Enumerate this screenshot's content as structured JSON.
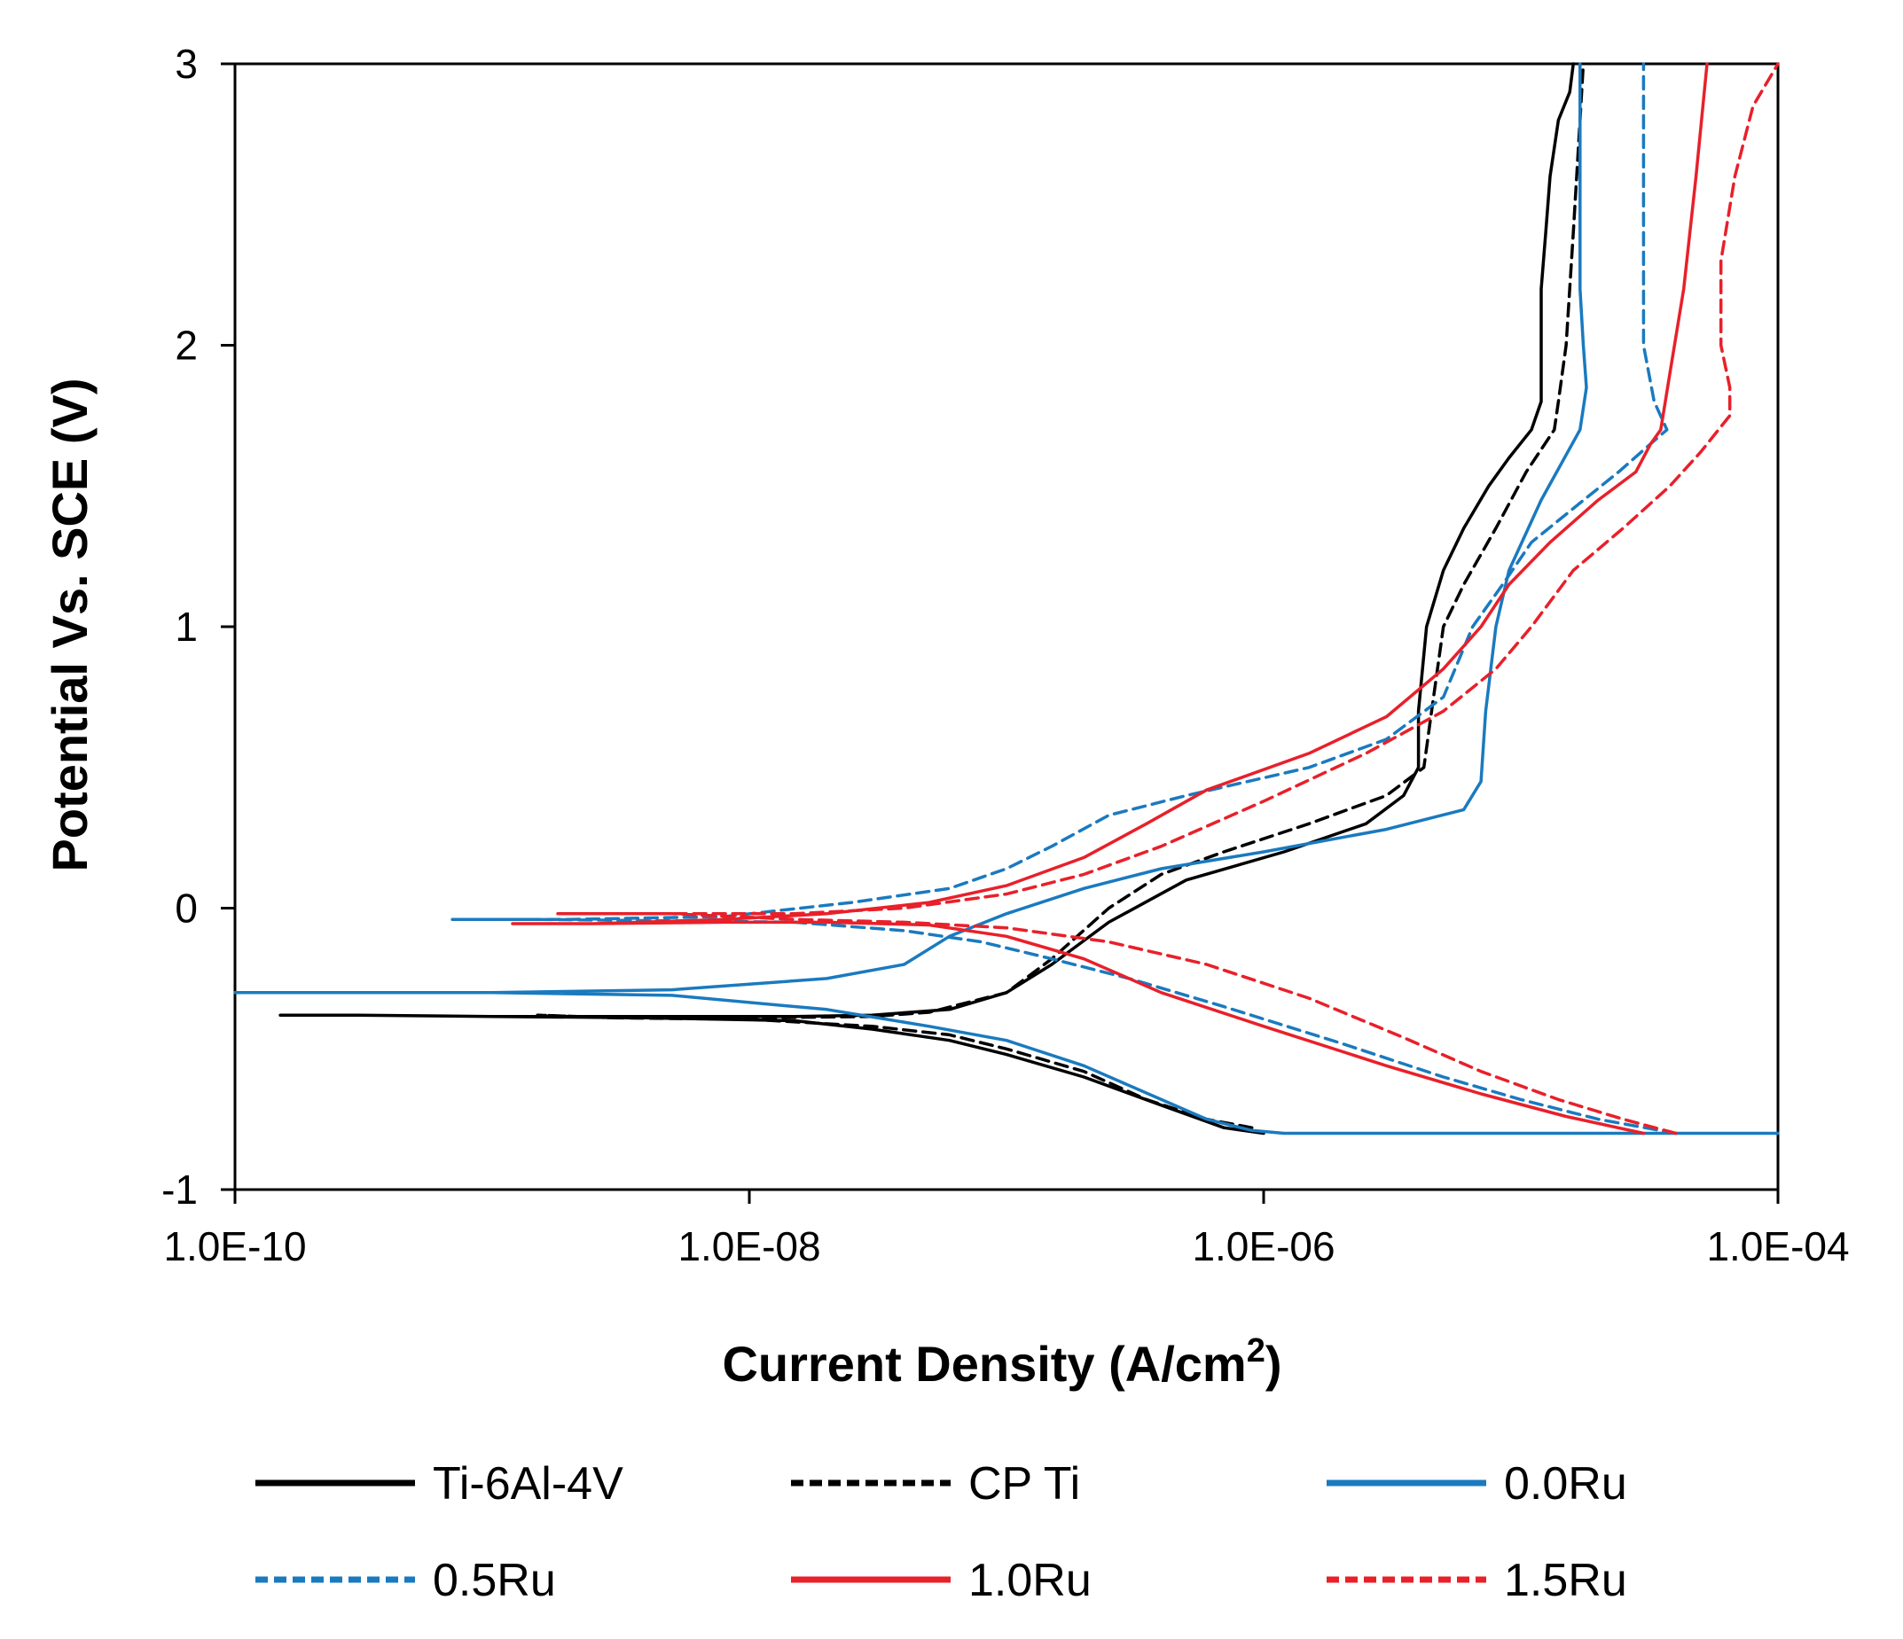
{
  "chart_data": {
    "type": "line",
    "title": "",
    "xlabel": "Current Density (A/cm",
    "xlabel_superscript": "2",
    "xlabel_close": ")",
    "ylabel": "Potential Vs. SCE (V)",
    "xscale": "log",
    "xlim": [
      1e-10,
      0.0001
    ],
    "ylim": [
      -1,
      3
    ],
    "x_ticks": [
      1e-10,
      1e-08,
      1e-06,
      0.0001
    ],
    "x_tick_labels": [
      "1.0E-10",
      "1.0E-08",
      "1.0E-06",
      "1.0E-04"
    ],
    "y_ticks": [
      -1,
      0,
      1,
      2,
      3
    ],
    "y_tick_labels": [
      "-1",
      "0",
      "1",
      "2",
      "3"
    ],
    "grid": false,
    "legend_position": "bottom",
    "series": [
      {
        "name": "Ti-6Al-4V",
        "color": "#000000",
        "dash": "solid",
        "x": [
          1e-06,
          7e-07,
          4e-07,
          2e-07,
          1e-07,
          6e-08,
          3e-08,
          1.5e-08,
          4e-09,
          1e-09,
          3e-10,
          1.5e-10,
          3e-10,
          1e-09,
          4e-09,
          1.5e-08,
          3e-08,
          6e-08,
          1e-07,
          1.5e-07,
          2.5e-07,
          5e-07,
          1.2e-06,
          2.5e-06,
          3.5e-06,
          4e-06,
          4e-06,
          4.3e-06,
          5e-06,
          6e-06,
          7.5e-06,
          9e-06,
          1.1e-05,
          1.2e-05,
          1.2e-05,
          1.2e-05,
          1.25e-05,
          1.3e-05,
          1.4e-05,
          1.55e-05,
          1.6e-05
        ],
        "y": [
          -0.8,
          -0.78,
          -0.7,
          -0.6,
          -0.52,
          -0.47,
          -0.43,
          -0.4,
          -0.39,
          -0.385,
          -0.38,
          -0.38,
          -0.38,
          -0.385,
          -0.385,
          -0.385,
          -0.38,
          -0.36,
          -0.3,
          -0.2,
          -0.05,
          0.1,
          0.2,
          0.3,
          0.4,
          0.5,
          0.7,
          1.0,
          1.2,
          1.35,
          1.5,
          1.6,
          1.7,
          1.8,
          2.0,
          2.2,
          2.4,
          2.6,
          2.8,
          2.9,
          3.0
        ]
      },
      {
        "name": "CP Ti",
        "color": "#000000",
        "dash": "dashed",
        "x": [
          9e-07,
          6e-07,
          3.5e-07,
          2e-07,
          1e-07,
          6e-08,
          3e-08,
          1e-08,
          3e-09,
          1.5e-09,
          3e-09,
          1e-08,
          3e-08,
          5e-08,
          1e-07,
          1.5e-07,
          2.5e-07,
          4e-07,
          7e-07,
          1.5e-06,
          3e-06,
          4.2e-06,
          4.5e-06,
          5e-06,
          6e-06,
          8e-06,
          1.05e-05,
          1.35e-05,
          1.4e-05,
          1.5e-05,
          1.6e-05,
          1.7e-05,
          1.75e-05
        ],
        "y": [
          -0.78,
          -0.75,
          -0.68,
          -0.58,
          -0.5,
          -0.45,
          -0.42,
          -0.395,
          -0.39,
          -0.38,
          -0.39,
          -0.39,
          -0.385,
          -0.37,
          -0.3,
          -0.18,
          0.0,
          0.12,
          0.2,
          0.3,
          0.4,
          0.5,
          0.7,
          1.0,
          1.15,
          1.35,
          1.55,
          1.7,
          1.8,
          2.0,
          2.4,
          2.8,
          3.0
        ]
      },
      {
        "name": "0.0Ru",
        "color": "#1a7abf",
        "dash": "solid",
        "x": [
          0.0001,
          3e-05,
          1e-05,
          3e-06,
          1.2e-06,
          9e-07,
          6e-07,
          4e-07,
          2e-07,
          1e-07,
          5e-08,
          2e-08,
          5e-09,
          1e-09,
          3e-10,
          1e-10,
          3e-10,
          1e-09,
          5e-09,
          2e-08,
          4e-08,
          6e-08,
          1e-07,
          2e-07,
          4e-07,
          1e-06,
          3e-06,
          6e-06,
          7e-06,
          7.3e-06,
          8e-06,
          9e-06,
          1.2e-05,
          1.7e-05,
          1.8e-05,
          1.75e-05,
          1.7e-05,
          1.7e-05,
          1.7e-05
        ],
        "y": [
          -0.8,
          -0.8,
          -0.8,
          -0.8,
          -0.8,
          -0.79,
          -0.75,
          -0.68,
          -0.56,
          -0.47,
          -0.42,
          -0.36,
          -0.31,
          -0.3,
          -0.3,
          -0.3,
          -0.3,
          -0.3,
          -0.29,
          -0.25,
          -0.2,
          -0.1,
          -0.02,
          0.07,
          0.14,
          0.2,
          0.28,
          0.35,
          0.45,
          0.7,
          1.0,
          1.2,
          1.45,
          1.7,
          1.85,
          2.0,
          2.2,
          2.6,
          3.0
        ]
      },
      {
        "name": "0.5Ru",
        "color": "#1a7abf",
        "dash": "dashed",
        "x": [
          4e-05,
          2e-05,
          1e-05,
          5e-06,
          2e-06,
          7e-07,
          3e-07,
          1.5e-07,
          8e-08,
          4e-08,
          1.5e-08,
          5e-09,
          1.5e-09,
          7e-10,
          2e-09,
          8e-09,
          2.5e-08,
          6e-08,
          1e-07,
          1.5e-07,
          2.5e-07,
          5e-07,
          1.5e-06,
          3e-06,
          5e-06,
          6.5e-06,
          8.5e-06,
          1.1e-05,
          1.6e-05,
          2.4e-05,
          3.2e-05,
          3.7e-05,
          3.3e-05,
          3e-05,
          3e-05,
          3e-05
        ],
        "y": [
          -0.8,
          -0.75,
          -0.68,
          -0.6,
          -0.48,
          -0.35,
          -0.25,
          -0.18,
          -0.12,
          -0.08,
          -0.05,
          -0.045,
          -0.04,
          -0.04,
          -0.04,
          -0.03,
          0.02,
          0.07,
          0.14,
          0.22,
          0.33,
          0.4,
          0.5,
          0.6,
          0.75,
          1.0,
          1.15,
          1.3,
          1.42,
          1.55,
          1.65,
          1.7,
          1.8,
          2.0,
          2.5,
          3.0
        ]
      },
      {
        "name": "1.0Ru",
        "color": "#e8202a",
        "dash": "solid",
        "x": [
          3e-05,
          1.5e-05,
          7e-06,
          3e-06,
          1e-06,
          4e-07,
          2e-07,
          1e-07,
          5e-08,
          2e-08,
          8e-09,
          2.5e-09,
          1.2e-09,
          2.5e-09,
          8e-09,
          2e-08,
          5e-08,
          1e-07,
          2e-07,
          3.5e-07,
          6e-07,
          1.5e-06,
          3e-06,
          5e-06,
          7e-06,
          9e-06,
          1.3e-05,
          2e-05,
          2.8e-05,
          3.2e-05,
          3.5e-05,
          3.8e-05,
          4.3e-05,
          4.8e-05,
          5.3e-05
        ],
        "y": [
          -0.8,
          -0.74,
          -0.66,
          -0.56,
          -0.42,
          -0.3,
          -0.18,
          -0.1,
          -0.06,
          -0.05,
          -0.05,
          -0.055,
          -0.055,
          -0.055,
          -0.04,
          -0.02,
          0.02,
          0.08,
          0.18,
          0.3,
          0.42,
          0.55,
          0.68,
          0.85,
          1.0,
          1.15,
          1.3,
          1.45,
          1.55,
          1.65,
          1.7,
          1.9,
          2.2,
          2.6,
          3.0
        ]
      },
      {
        "name": "1.5Ru",
        "color": "#e8202a",
        "dash": "dashed",
        "x": [
          4e-05,
          2.5e-05,
          1.4e-05,
          7e-06,
          3.5e-06,
          1.5e-06,
          6e-07,
          2.5e-07,
          1e-07,
          4e-08,
          1.5e-08,
          5e-09,
          1.8e-09,
          5e-09,
          1.5e-08,
          4e-08,
          1e-07,
          2e-07,
          4e-07,
          1e-06,
          2.5e-06,
          5e-06,
          8e-06,
          1.1e-05,
          1.6e-05,
          2.5e-05,
          3.8e-05,
          5e-05,
          6.5e-05,
          6.5e-05,
          6e-05,
          6e-05,
          6.8e-05,
          8e-05,
          0.0001
        ],
        "y": [
          -0.8,
          -0.75,
          -0.68,
          -0.58,
          -0.46,
          -0.32,
          -0.2,
          -0.12,
          -0.07,
          -0.05,
          -0.04,
          -0.02,
          -0.02,
          -0.02,
          -0.02,
          0.0,
          0.05,
          0.12,
          0.22,
          0.38,
          0.55,
          0.7,
          0.85,
          1.0,
          1.2,
          1.35,
          1.5,
          1.62,
          1.75,
          1.85,
          2.0,
          2.3,
          2.6,
          2.85,
          3.0
        ]
      }
    ]
  }
}
